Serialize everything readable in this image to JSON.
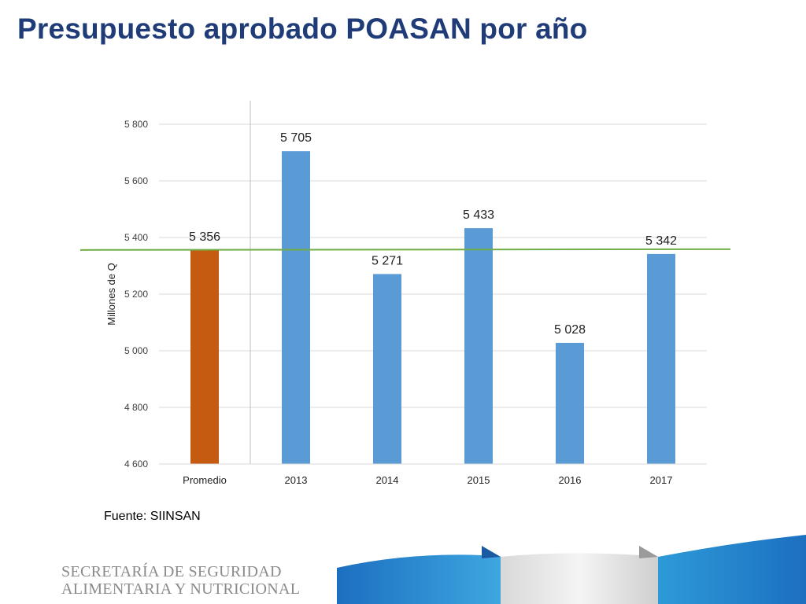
{
  "slide": {
    "title": "Presupuesto aprobado POASAN por año",
    "source": "Fuente: SIINSAN",
    "org_line1": "SECRETARÍA DE SEGURIDAD",
    "org_line2": "ALIMENTARIA Y NUTRICIONAL"
  },
  "chart_data": {
    "type": "bar",
    "title": "",
    "xlabel": "",
    "ylabel": "Millones de Q",
    "categories": [
      "Promedio",
      "2013",
      "2014",
      "2015",
      "2016",
      "2017"
    ],
    "values": [
      5356,
      5705,
      5271,
      5433,
      5028,
      5342
    ],
    "value_labels": [
      "5 356",
      "5 705",
      "5 271",
      "5 433",
      "5 028",
      "5 342"
    ],
    "ylim": [
      4600,
      5800
    ],
    "yticks": [
      4600,
      4800,
      5000,
      5200,
      5400,
      5600,
      5800
    ],
    "ytick_labels": [
      "4 600",
      "4 800",
      "5 000",
      "5 200",
      "5 400",
      "5 600",
      "5 800"
    ],
    "reference_line": 5356,
    "grid": true,
    "legend": "none",
    "colors": {
      "average_bar": "#c55a11",
      "year_bars": "#5b9bd5",
      "reference_line": "#70ad47",
      "grid": "#d9d9d9",
      "title": "#1f3b78"
    }
  }
}
